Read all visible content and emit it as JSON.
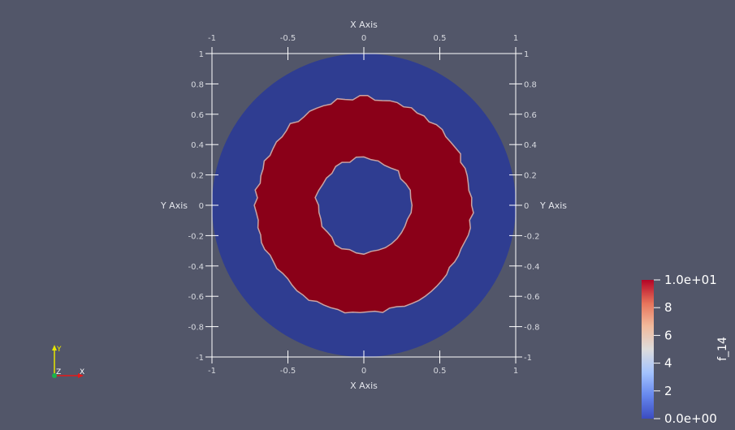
{
  "view": {
    "background": "#525669",
    "x_axis": {
      "title": "X Axis",
      "range": [
        -1,
        1
      ],
      "tick_labels": [
        "-1",
        "-0.5",
        "0",
        "0.5",
        "1"
      ],
      "tick_values": [
        -1,
        -0.5,
        0,
        0.5,
        1
      ]
    },
    "y_axis": {
      "title": "Y Axis",
      "range": [
        -1,
        1
      ],
      "tick_labels": [
        "-1",
        "-0.8",
        "-0.6",
        "-0.4",
        "-0.2",
        "0",
        "0.2",
        "0.4",
        "0.6",
        "0.8",
        "1"
      ],
      "tick_values": [
        -1,
        -0.8,
        -0.6,
        -0.4,
        -0.2,
        0,
        0.2,
        0.4,
        0.6,
        0.8,
        1
      ]
    },
    "field": {
      "low_color": "#2f3d91",
      "high_color": "#8a0018",
      "edge_color": "#c9a3a3",
      "outer_disk_radius": 1.0,
      "annulus_outer_radius": 0.71,
      "annulus_inner_radius": 0.31,
      "annulus_center": [
        0.0,
        0.0
      ]
    },
    "colorbar": {
      "title": "f_14",
      "labels": [
        "1.0e+01",
        "8",
        "6",
        "4",
        "2",
        "0.0e+00"
      ],
      "values": [
        10,
        8,
        6,
        4,
        2,
        0
      ],
      "range": [
        0,
        10
      ],
      "gradient": [
        "#b40426",
        "#e7745b",
        "#f1b99b",
        "#dddcdc",
        "#a3c2fe",
        "#6788ee",
        "#3b4cc0"
      ]
    },
    "orientation_triad": {
      "y_label": "Y",
      "z_label": "Z",
      "x_label": "X",
      "y_color": "#e6e600",
      "x_color": "#e61919",
      "z_color": "#19b34d"
    }
  }
}
